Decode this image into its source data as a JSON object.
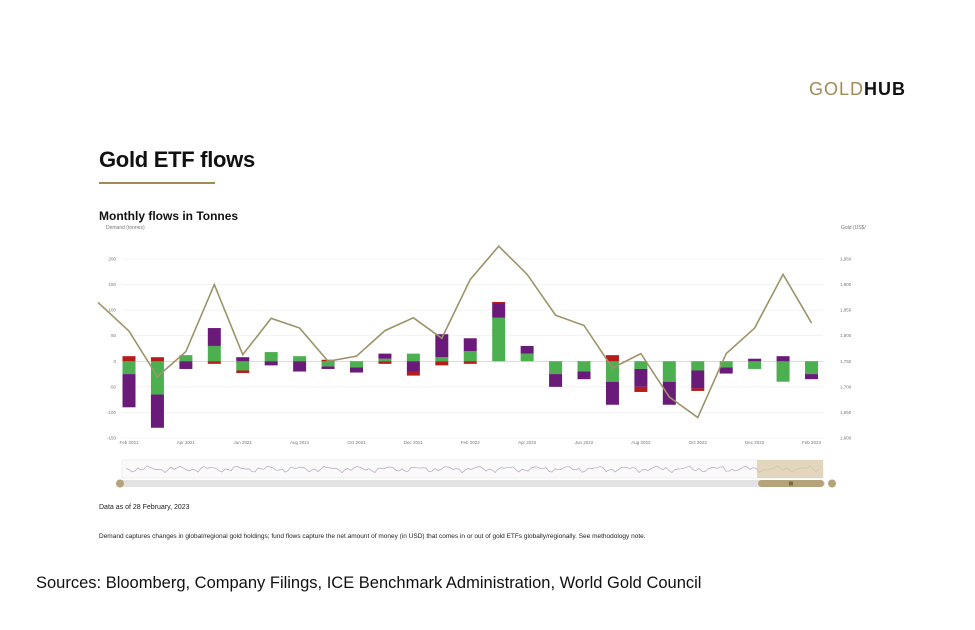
{
  "logo": {
    "part1": "GOLD",
    "part2": "HUB"
  },
  "title": "Gold ETF flows",
  "subtitle": "Monthly flows in Tonnes",
  "note_date": "Data as of 28 February, 2023",
  "note_method": "Demand captures changes in global/regional gold holdings; fund flows capture the net amount of money (in USD) that comes in or out of gold ETFs globally/regionally. See methodology note.",
  "sources": "Sources: Bloomberg, Company Filings, ICE Benchmark Administration, World Gold Council",
  "colors": {
    "purple": "#6a1b7a",
    "green": "#4caf50",
    "red": "#b71c1c",
    "gold_line": "#9c9468",
    "accent": "#a08a57"
  },
  "chart_data": {
    "type": "bar",
    "stacked": true,
    "ylabel": "Demand (tonnes)",
    "y2label": "Gold (US$/oz)",
    "ylim": [
      -150,
      200
    ],
    "y2lim": [
      1600,
      1950
    ],
    "yticks": [
      -150,
      -100,
      -50,
      0,
      50,
      100,
      150,
      200
    ],
    "y2ticks": [
      "1,600",
      "1,650",
      "1,700",
      "1,750",
      "1,800",
      "1,850",
      "1,900",
      "1,950"
    ],
    "xticks": [
      "Feb 2021",
      "Apr 2021",
      "Jun 2021",
      "Aug 2021",
      "Oct 2021",
      "Dec 2021",
      "Feb 2022",
      "Apr 2022",
      "Jun 2022",
      "Aug 2022",
      "Oct 2022",
      "Dec 2022",
      "Feb 2023"
    ],
    "categories": [
      "Feb 2021",
      "Mar 2021",
      "Apr 2021",
      "May 2021",
      "Jun 2021",
      "Jul 2021",
      "Aug 2021",
      "Sep 2021",
      "Oct 2021",
      "Nov 2021",
      "Dec 2021",
      "Jan 2022",
      "Feb 2022",
      "Mar 2022",
      "Apr 2022",
      "May 2022",
      "Jun 2022",
      "Jul 2022",
      "Aug 2022",
      "Sep 2022",
      "Oct 2022",
      "Nov 2022",
      "Dec 2022",
      "Jan 2023",
      "Feb 2023"
    ],
    "series": [
      {
        "values": [
          -65,
          -65,
          -15,
          35,
          8,
          -8,
          -20,
          -5,
          -10,
          10,
          -20,
          45,
          25,
          28,
          15,
          -25,
          -15,
          -45,
          -35,
          -45,
          -35,
          -12,
          5,
          10,
          -10
        ]
      },
      {
        "values": [
          -25,
          -65,
          12,
          30,
          -18,
          18,
          10,
          -10,
          -12,
          5,
          15,
          8,
          20,
          85,
          15,
          -25,
          -20,
          -40,
          -15,
          -40,
          -18,
          -12,
          -15,
          -40,
          -25
        ]
      },
      {
        "values": [
          10,
          8,
          0,
          -5,
          -5,
          0,
          0,
          3,
          0,
          -5,
          -8,
          -8,
          -5,
          3,
          0,
          0,
          0,
          12,
          -10,
          0,
          -5,
          0,
          0,
          0,
          0
        ]
      }
    ],
    "gold_price": [
      1809,
      1720,
      1769,
      1900,
      1763,
      1834,
      1815,
      1750,
      1760,
      1810,
      1835,
      1795,
      1910,
      1975,
      1920,
      1840,
      1820,
      1737,
      1765,
      1680,
      1640,
      1765,
      1815,
      1920,
      1825
    ],
    "gold_price_start": 1865
  }
}
